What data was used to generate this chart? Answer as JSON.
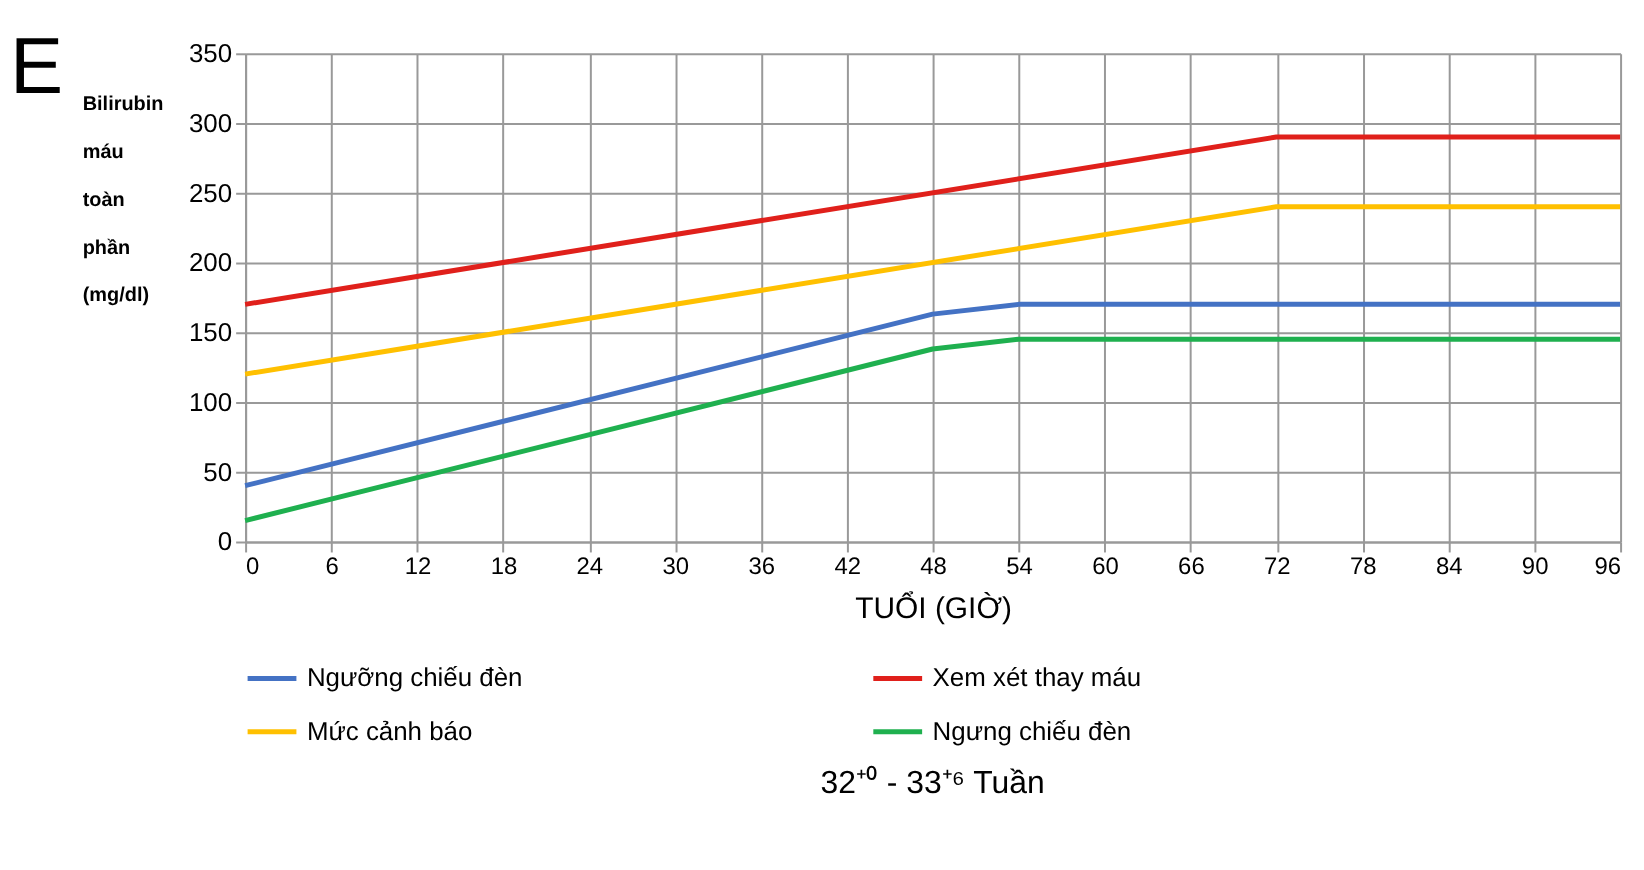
{
  "chart_data": {
    "type": "line",
    "xlabel": "TUỔI (GIỜ)",
    "ylabel": "Bilirubin máu toàn phần (mg/dl)",
    "title": "32⁺⁰ - 33⁺⁶ Tuần",
    "annotations": [
      "E"
    ],
    "xlim": [
      0,
      96
    ],
    "xticks": [
      0,
      6,
      12,
      18,
      24,
      30,
      36,
      42,
      48,
      54,
      60,
      66,
      72,
      78,
      84,
      90,
      96
    ],
    "ylim": [
      0,
      350
    ],
    "yticks": [
      0,
      50,
      100,
      150,
      200,
      250,
      300,
      350
    ],
    "grid": true,
    "legend": "bottom",
    "marker": "none",
    "line_style": "solid",
    "series": [
      {
        "name": "Ngưỡng chiếu đèn",
        "color": "#4472c4",
        "x": [
          0,
          48,
          54,
          96
        ],
        "values": [
          40,
          163,
          170,
          170
        ]
      },
      {
        "name": "Xem xét thay máu",
        "color": "#e0201b",
        "x": [
          0,
          72,
          96
        ],
        "values": [
          170,
          290,
          290
        ]
      },
      {
        "name": "Mức cảnh báo",
        "color": "#ffc000",
        "x": [
          0,
          72,
          96
        ],
        "values": [
          120,
          240,
          240
        ]
      },
      {
        "name": "Ngưng chiếu đèn",
        "color": "#1fb04f",
        "x": [
          0,
          48,
          54,
          96
        ],
        "values": [
          15,
          138,
          145,
          145
        ]
      }
    ]
  }
}
